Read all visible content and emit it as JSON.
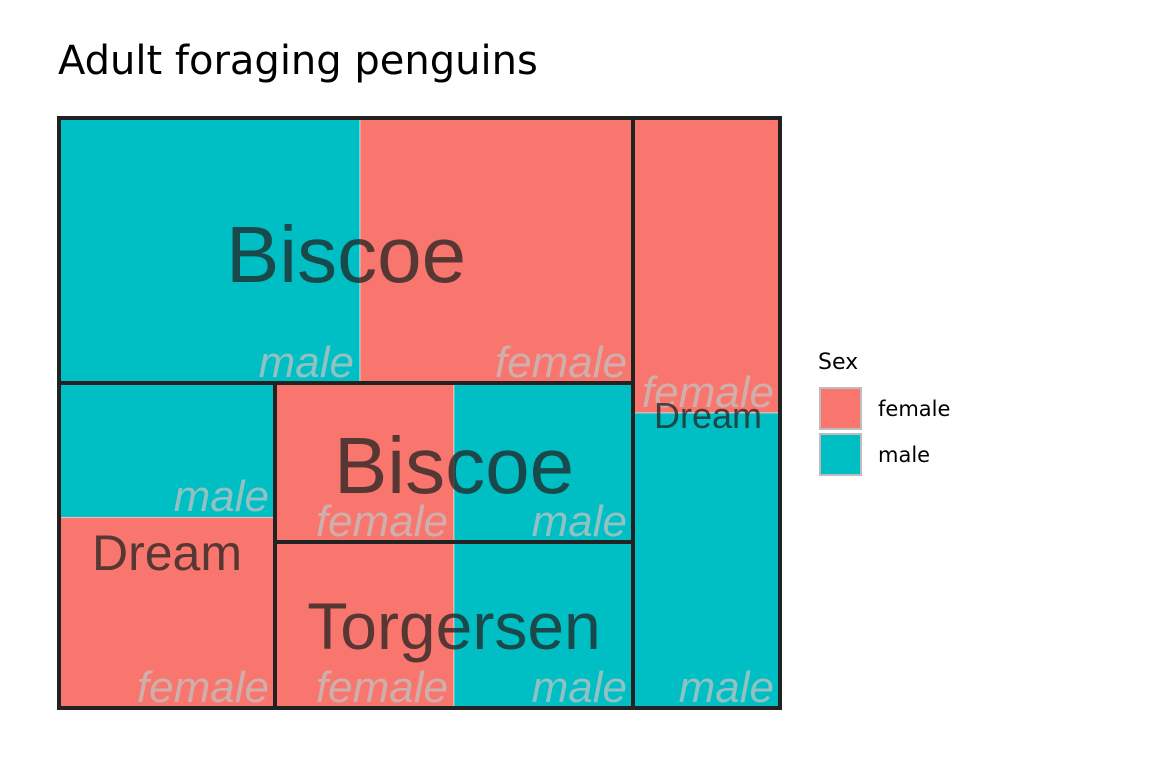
{
  "chart_data": {
    "type": "treemap",
    "title": "Adult foraging penguins",
    "legend": {
      "title": "Sex",
      "position": "right",
      "entries": [
        {
          "label": "female",
          "color": "#F8766D"
        },
        {
          "label": "male",
          "color": "#00BFC4"
        }
      ]
    },
    "groups": [
      {
        "label": "Biscoe",
        "children": [
          {
            "label": "male",
            "sex": "male",
            "value": 43
          },
          {
            "label": "female",
            "sex": "female",
            "value": 39
          }
        ]
      },
      {
        "label": "Dream",
        "children": [
          {
            "label": "male",
            "sex": "male",
            "value": 19
          },
          {
            "label": "female",
            "sex": "female",
            "value": 27
          }
        ]
      },
      {
        "label": "Dream",
        "children": [
          {
            "label": "female",
            "sex": "female",
            "value": 13
          },
          {
            "label": "male",
            "sex": "male",
            "value": 13
          }
        ]
      },
      {
        "label": "Biscoe",
        "children": [
          {
            "label": "female",
            "sex": "female",
            "value": 14
          },
          {
            "label": "male",
            "sex": "male",
            "value": 14
          }
        ]
      },
      {
        "label": "Torgersen",
        "children": [
          {
            "label": "female",
            "sex": "female",
            "value": 10
          },
          {
            "label": "male",
            "sex": "male",
            "value": 10
          }
        ]
      }
    ]
  }
}
